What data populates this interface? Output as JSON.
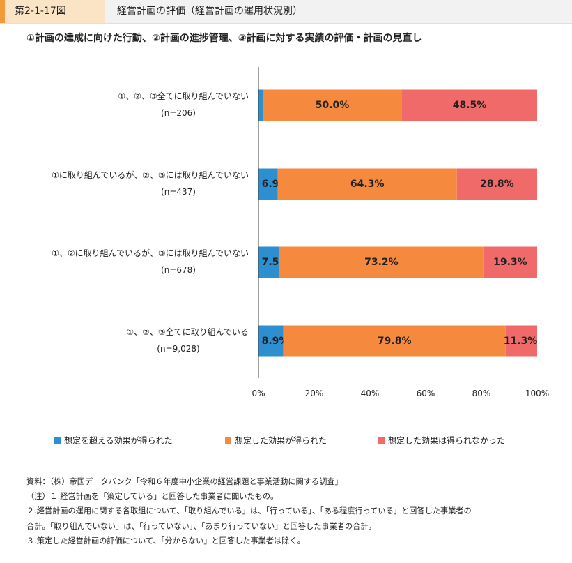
{
  "header": {
    "figure_number": "第2-1-17図",
    "title": "経営計画の評価（経営計画の運用状況別）"
  },
  "chart_data": {
    "type": "bar",
    "orientation": "horizontal",
    "stacked": true,
    "title": "①計画の達成に向けた行動、②計画の進捗管理、③計画に対する実績の評価・計画の見直し",
    "categories": [
      {
        "label": "①、②、③全てに取り組んでいない",
        "n": "(n=206)"
      },
      {
        "label": "①に取り組んでいるが、②、③には取り組んでいない",
        "n": "(n=437)"
      },
      {
        "label": "①、②に取り組んでいるが、③には取り組んでいない",
        "n": "(n=678)"
      },
      {
        "label": "①、②、③全てに取り組んでいる",
        "n": "(n=9,028)"
      }
    ],
    "series": [
      {
        "name": "想定を超える効果が得られた",
        "color": "#2e8fd0",
        "values": [
          1.5,
          6.9,
          7.5,
          8.9
        ]
      },
      {
        "name": "想定した効果が得られた",
        "color": "#f58a3f",
        "values": [
          50.0,
          64.3,
          73.2,
          79.8
        ]
      },
      {
        "name": "想定した効果は得られなかった",
        "color": "#f06a6a",
        "values": [
          48.5,
          28.8,
          19.3,
          11.3
        ]
      }
    ],
    "xlim": [
      0,
      100
    ],
    "xticks": [
      "0%",
      "20%",
      "40%",
      "60%",
      "80%",
      "100%"
    ],
    "legend_position": "bottom"
  },
  "notes": [
    "資料：（株）帝国データバンク「令和６年度中小企業の経営課題と事業活動に関する調査」",
    "（注）１.経営計画を「策定している」と回答した事業者に聞いたもの。",
    "２.経営計画の運用に関する各取組について、「取り組んでいる」は、「行っている」、「ある程度行っている」と回答した事業者の",
    "合計。「取り組んでいない」は、「行っていない」、「あまり行っていない」と回答した事業者の合計。",
    "３.策定した経営計画の評価について、「分からない」と回答した事業者は除く。"
  ]
}
